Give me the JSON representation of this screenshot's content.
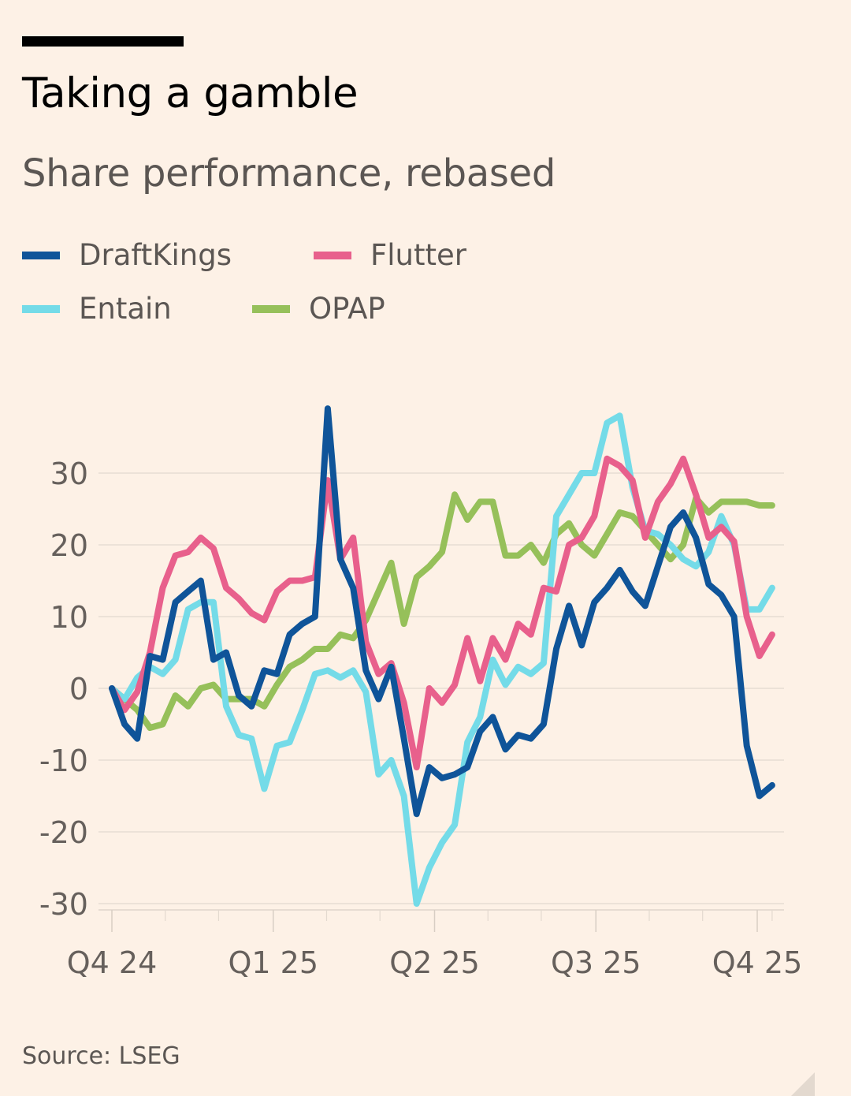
{
  "header": {
    "title": "Taking a gamble",
    "subtitle": "Share performance, rebased"
  },
  "legend": [
    {
      "name": "DraftKings",
      "color": "#0f5499"
    },
    {
      "name": "Flutter",
      "color": "#e8608c"
    },
    {
      "name": "Entain",
      "color": "#74dbe8"
    },
    {
      "name": "OPAP",
      "color": "#96c05a"
    }
  ],
  "footer": {
    "source": "Source: LSEG"
  },
  "chart_data": {
    "type": "line",
    "title": "Taking a gamble",
    "subtitle": "Share performance, rebased",
    "xlabel": "",
    "ylabel": "",
    "x_unit": "weeks since start of Q4 24",
    "xlim": [
      0,
      53
    ],
    "ylim": [
      -30,
      38
    ],
    "yticks": [
      30,
      20,
      10,
      0,
      -10,
      -20,
      -30
    ],
    "xticks": [
      {
        "label": "Q4 24",
        "x": 0
      },
      {
        "label": "Q1 25",
        "x": 13
      },
      {
        "label": "Q2 25",
        "x": 26
      },
      {
        "label": "Q3 25",
        "x": 39
      },
      {
        "label": "Q4 25",
        "x": 52
      }
    ],
    "minor_xticks": [
      4.3,
      8.6,
      17.3,
      21.6,
      30.3,
      34.6,
      43.3,
      47.6,
      53.2
    ],
    "grid": true,
    "legend_position": "top-left",
    "series": [
      {
        "name": "DraftKings",
        "color": "#0f5499",
        "values": [
          0,
          -5,
          -7,
          4.5,
          4,
          12,
          13.5,
          15,
          4,
          5,
          -1,
          -2.5,
          2.5,
          2,
          7.5,
          9,
          10,
          39,
          18,
          14,
          2.5,
          -1.5,
          3,
          -7,
          -17.5,
          -11,
          -12.5,
          -12,
          -11,
          -6,
          -4,
          -8.5,
          -6.5,
          -7,
          -5,
          5.5,
          11.5,
          6,
          12,
          14,
          16.5,
          13.5,
          11.5,
          17,
          22.5,
          24.5,
          21,
          14.5,
          13,
          10,
          -8,
          -15,
          -13.5
        ]
      },
      {
        "name": "Flutter",
        "color": "#e8608c",
        "values": [
          0,
          -3,
          -0.5,
          5,
          14,
          18.5,
          19,
          21,
          19.5,
          14,
          12.5,
          10.5,
          9.5,
          13.5,
          15,
          15,
          15.5,
          29,
          18,
          21,
          6.5,
          2,
          3.5,
          -2,
          -11,
          0,
          -2,
          0.5,
          7,
          1,
          7,
          4,
          9,
          7.5,
          14,
          13.5,
          20,
          21,
          24,
          32,
          31,
          29,
          21,
          26,
          28.5,
          32,
          27,
          21,
          22.5,
          20.5,
          10,
          4.5,
          7.5
        ]
      },
      {
        "name": "Entain",
        "color": "#74dbe8",
        "values": [
          0,
          -1.5,
          1.5,
          3,
          2,
          4,
          11,
          12,
          12,
          -2.5,
          -6.5,
          -7,
          -14,
          -8,
          -7.5,
          -3,
          2,
          2.5,
          1.5,
          2.5,
          -0.5,
          -12,
          -10,
          -15,
          -30,
          -25,
          -21.5,
          -19,
          -7.5,
          -4,
          4,
          0.5,
          3,
          2,
          3.5,
          24,
          27,
          30,
          30,
          37,
          38,
          28,
          22,
          21.5,
          20,
          18,
          17,
          19,
          24,
          20,
          11,
          11,
          14
        ]
      },
      {
        "name": "OPAP",
        "color": "#96c05a",
        "values": [
          0,
          -1.5,
          -3,
          -5.5,
          -5,
          -1,
          -2.5,
          0,
          0.5,
          -1.5,
          -1.5,
          -1.5,
          -2.5,
          0.5,
          3,
          4,
          5.5,
          5.5,
          7.5,
          7,
          9.5,
          13.5,
          17.5,
          9,
          15.5,
          17,
          19,
          27,
          23.5,
          26,
          26,
          18.5,
          18.5,
          20,
          17.5,
          21.5,
          23,
          20,
          18.5,
          21.5,
          24.5,
          24,
          22,
          20,
          18,
          20,
          26.5,
          24.5,
          26,
          26,
          26,
          25.5,
          25.5
        ]
      }
    ]
  }
}
